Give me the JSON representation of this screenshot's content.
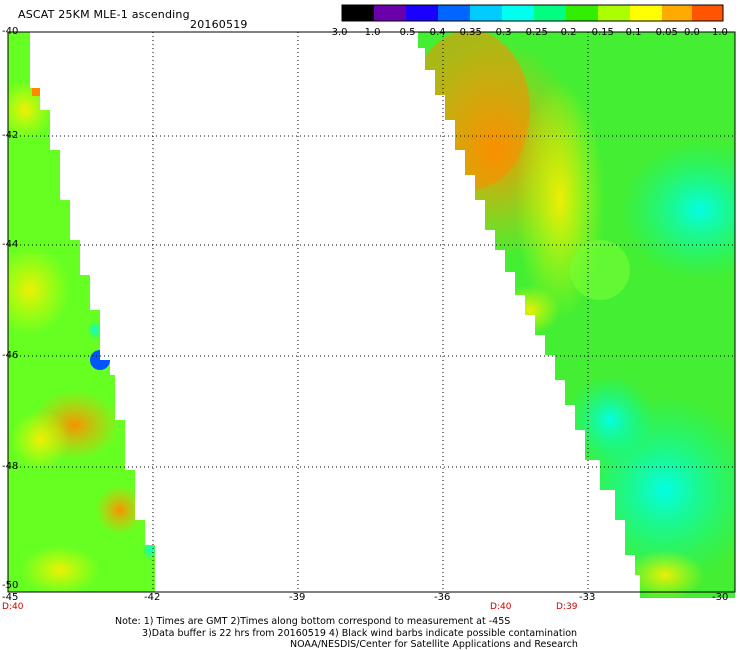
{
  "header": {
    "title": "ASCAT 25KM MLE-1 ascending",
    "date": "20160519"
  },
  "colorbar": {
    "labels": [
      "-3.0",
      "-1.0",
      "-0.5",
      "-0.4",
      "-0.35",
      "-0.3",
      "-0.25",
      "-0.2",
      "-0.15",
      "-0.1",
      "-0.05",
      "0.0",
      "1.0"
    ],
    "colors": [
      "#000000",
      "#6a00aa",
      "#1a00ff",
      "#0066ff",
      "#00ccff",
      "#00ffee",
      "#00ff80",
      "#33ee00",
      "#aaff00",
      "#ffff00",
      "#ffaa00",
      "#ff6600",
      "#ff0000"
    ]
  },
  "axes": {
    "y_ticks": [
      "-40",
      "-42",
      "-44",
      "-46",
      "-48",
      "-50"
    ],
    "x_ticks": [
      "-45",
      "-42",
      "-39",
      "-36",
      "-33",
      "-30"
    ]
  },
  "times": [
    "D:40",
    "D:40",
    "D:39"
  ],
  "notes": [
    "Note: 1) Times are GMT 2)Times along bottom correspond to measurement at -45S",
    "3)Data buffer is 22 hrs from 20160519 4) Black wind barbs indicate possible contamination",
    "NOAA/NESDIS/Center for Satellite Applications and Research"
  ]
}
